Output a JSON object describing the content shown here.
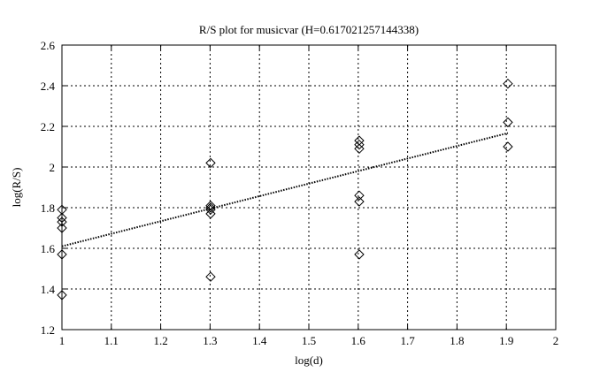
{
  "chart_data": {
    "type": "scatter",
    "title": "R/S plot for musicvar (H=0.617021257144338)",
    "xlabel": "log(d)",
    "ylabel": "log(R/S)",
    "xlim": [
      1,
      2
    ],
    "ylim": [
      1.2,
      2.6
    ],
    "xticks": [
      "1",
      "1.1",
      "1.2",
      "1.3",
      "1.4",
      "1.5",
      "1.6",
      "1.7",
      "1.8",
      "1.9",
      "2"
    ],
    "yticks": [
      "1.2",
      "1.4",
      "1.6",
      "1.8",
      "2",
      "2.2",
      "2.4",
      "2.6"
    ],
    "grid": true,
    "marker": "diamond",
    "points": [
      {
        "x": 1.0,
        "y": 1.79
      },
      {
        "x": 1.0,
        "y": 1.75
      },
      {
        "x": 1.0,
        "y": 1.73
      },
      {
        "x": 1.0,
        "y": 1.7
      },
      {
        "x": 1.0,
        "y": 1.57
      },
      {
        "x": 1.0,
        "y": 1.37
      },
      {
        "x": 1.30103,
        "y": 2.02
      },
      {
        "x": 1.30103,
        "y": 1.81
      },
      {
        "x": 1.30103,
        "y": 1.8
      },
      {
        "x": 1.30103,
        "y": 1.79
      },
      {
        "x": 1.30103,
        "y": 1.77
      },
      {
        "x": 1.30103,
        "y": 1.46
      },
      {
        "x": 1.60206,
        "y": 2.13
      },
      {
        "x": 1.60206,
        "y": 2.11
      },
      {
        "x": 1.60206,
        "y": 2.09
      },
      {
        "x": 1.60206,
        "y": 1.86
      },
      {
        "x": 1.60206,
        "y": 1.83
      },
      {
        "x": 1.60206,
        "y": 1.57
      },
      {
        "x": 1.90309,
        "y": 2.41
      },
      {
        "x": 1.90309,
        "y": 2.22
      },
      {
        "x": 1.90309,
        "y": 2.1
      }
    ],
    "fit_line": {
      "style": "dotted",
      "from": {
        "x": 1.0,
        "y": 1.61
      },
      "to": {
        "x": 1.90309,
        "y": 2.167
      }
    }
  }
}
